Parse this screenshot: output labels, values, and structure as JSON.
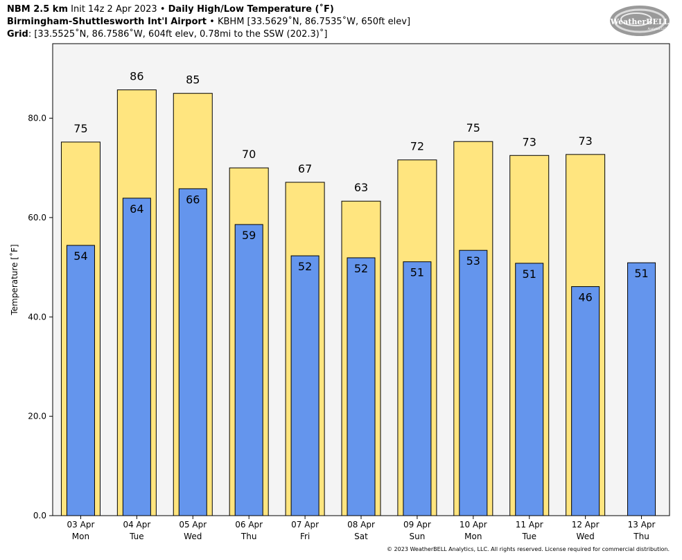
{
  "header": {
    "line1_model": "NBM 2.5 km",
    "line1_init": "Init 14z 2 Apr 2023",
    "line1_sep": "•",
    "line1_product": "Daily High/Low Temperature (˚F)",
    "line2_station": "Birmingham-Shuttlesworth Int'l Airport",
    "line2_sep": "•",
    "line2_detail": "KBHM [33.5629˚N, 86.7535˚W, 650ft elev]",
    "line3_label": "Grid",
    "line3_detail": ": [33.5525˚N, 86.7586˚W, 604ft elev, 0.78mi to the SSW (202.3)˚]"
  },
  "logo": {
    "name": "WeatherBELL",
    "subtext": "Analytics LLC"
  },
  "copyright": "© 2023 WeatherBELL Analytics, LLC. All rights reserved. License required for commercial distribution.",
  "chart_data": {
    "type": "bar",
    "title": "Daily High/Low Temperature (˚F)",
    "xlabel": "",
    "ylabel": "Temperature [˚F]",
    "ylim": [
      0,
      95
    ],
    "yticks": [
      0,
      20,
      40,
      60,
      80
    ],
    "ytick_labels": [
      "0.0",
      "20.0",
      "40.0",
      "60.0",
      "80.0"
    ],
    "grid": false,
    "categories": [
      "03 Apr",
      "04 Apr",
      "05 Apr",
      "06 Apr",
      "07 Apr",
      "08 Apr",
      "09 Apr",
      "10 Apr",
      "11 Apr",
      "12 Apr",
      "13 Apr"
    ],
    "weekdays": [
      "Mon",
      "Tue",
      "Wed",
      "Thu",
      "Fri",
      "Sat",
      "Sun",
      "Mon",
      "Tue",
      "Wed",
      "Thu"
    ],
    "series": [
      {
        "values": [
          75.2,
          85.7,
          85.0,
          70.0,
          67.1,
          63.3,
          71.6,
          75.3,
          72.5,
          72.7,
          null
        ],
        "labels": [
          "75",
          "86",
          "85",
          "70",
          "67",
          "63",
          "72",
          "75",
          "73",
          "73",
          ""
        ],
        "color": "#ffe57f"
      },
      {
        "values": [
          54.4,
          63.9,
          65.8,
          58.6,
          52.3,
          51.9,
          51.1,
          53.4,
          50.8,
          46.1,
          50.9
        ],
        "labels": [
          "54",
          "64",
          "66",
          "59",
          "52",
          "52",
          "51",
          "53",
          "51",
          "46",
          "51"
        ],
        "color": "#6495ed"
      }
    ],
    "plot_background": "#f4f4f4"
  }
}
